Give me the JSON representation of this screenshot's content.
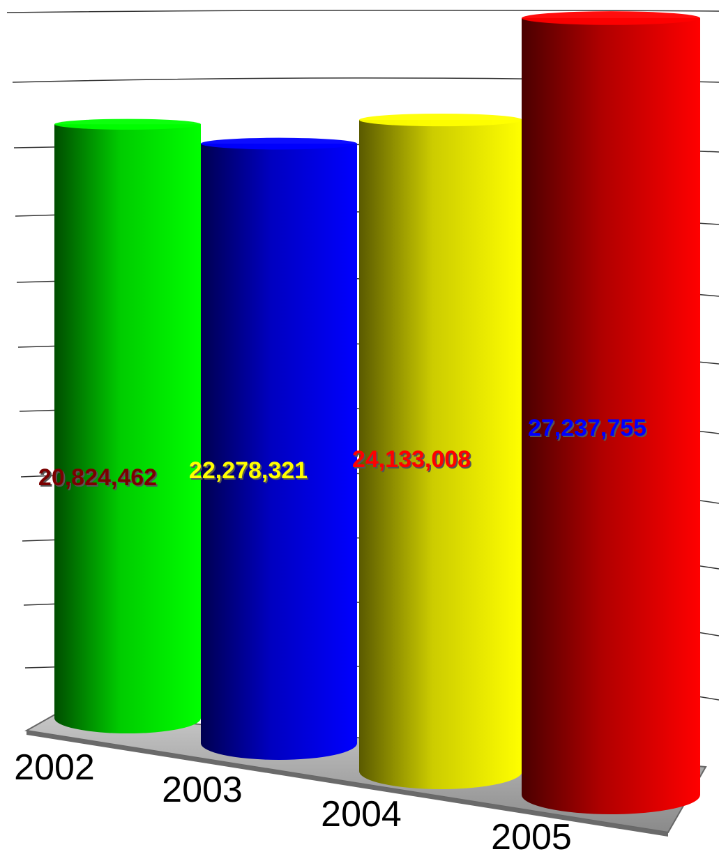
{
  "chart_data": {
    "type": "bar",
    "style": "3d-cylinder",
    "categories": [
      "2002",
      "2003",
      "2004",
      "2005"
    ],
    "values": [
      20824462,
      22278321,
      24133008,
      27237755
    ],
    "value_labels": [
      "20,824,462",
      "22,278,321",
      "24,133,008",
      "27,237,755"
    ],
    "title": "",
    "xlabel": "",
    "ylabel": "",
    "grid": true,
    "legend": "none",
    "bar_colors": [
      "#00ff00",
      "#0000ff",
      "#ffff00",
      "#ff0000"
    ],
    "label_colors": [
      "#7a0000",
      "#ffff00",
      "#ff0000",
      "#0000ff"
    ]
  }
}
